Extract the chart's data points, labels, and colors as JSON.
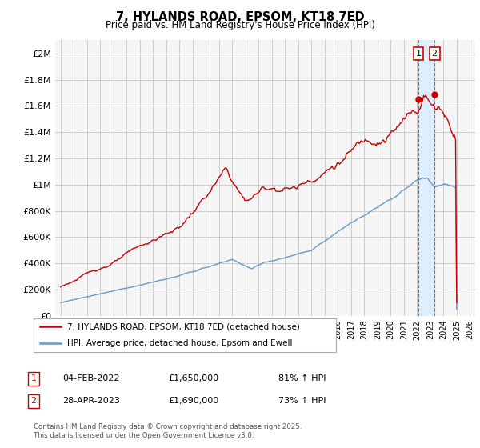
{
  "title": "7, HYLANDS ROAD, EPSOM, KT18 7ED",
  "subtitle": "Price paid vs. HM Land Registry's House Price Index (HPI)",
  "legend_line1": "7, HYLANDS ROAD, EPSOM, KT18 7ED (detached house)",
  "legend_line2": "HPI: Average price, detached house, Epsom and Ewell",
  "transaction1_date": "04-FEB-2022",
  "transaction1_price": "£1,650,000",
  "transaction1_hpi": "81% ↑ HPI",
  "transaction2_date": "28-APR-2023",
  "transaction2_price": "£1,690,000",
  "transaction2_hpi": "73% ↑ HPI",
  "footer": "Contains HM Land Registry data © Crown copyright and database right 2025.\nThis data is licensed under the Open Government Licence v3.0.",
  "line1_color": "#cc0000",
  "line2_color": "#6699cc",
  "shade_color": "#ddeeff",
  "marker_color": "#cc0000",
  "annotation_color": "#cc0000",
  "background_color": "#ffffff",
  "grid_color": "#cccccc",
  "ylim": [
    0,
    2100000
  ],
  "yticks": [
    0,
    200000,
    400000,
    600000,
    800000,
    1000000,
    1200000,
    1400000,
    1600000,
    1800000,
    2000000
  ],
  "t1_year": 2022.093,
  "t2_year": 2023.322,
  "t1_price": 1650000,
  "t2_price": 1690000,
  "xstart": 1995,
  "xend": 2026
}
